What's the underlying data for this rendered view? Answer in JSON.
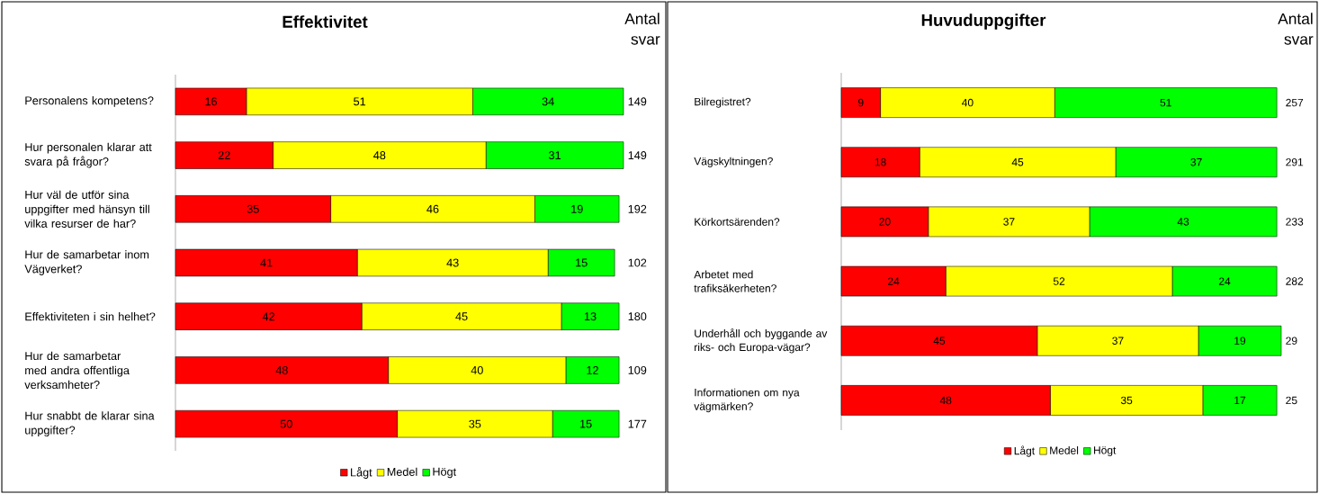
{
  "chart_data": [
    {
      "type": "bar",
      "orientation": "horizontal",
      "stacked": true,
      "title": "Effektivitet",
      "data_labels": true,
      "legend": "bottom",
      "tick_labels": "y",
      "categories": [
        "Personalens kompetens?",
        "Hur personalen klarar att svara på frågor?",
        "Hur väl de utför sina uppgifter med hänsyn till vilka resurser de har?",
        "Hur de samarbetar inom Vägverket?",
        "Effektiviteten i sin helhet?",
        "Hur de samarbetar med andra offentliga verksamheter?",
        "Hur snabbt de klarar sina uppgifter?"
      ],
      "series": [
        {
          "name": "Lågt",
          "color": "#ff0000",
          "values": [
            16,
            22,
            35,
            41,
            42,
            48,
            50
          ]
        },
        {
          "name": "Medel",
          "color": "#ffff00",
          "values": [
            51,
            48,
            46,
            43,
            45,
            40,
            35
          ]
        },
        {
          "name": "Högt",
          "color": "#00ff00",
          "values": [
            34,
            31,
            19,
            15,
            13,
            12,
            15
          ]
        }
      ],
      "annotations": [
        "Antal svar",
        "149",
        "149",
        "192",
        "102",
        "180",
        "109",
        "177"
      ]
    },
    {
      "type": "bar",
      "orientation": "horizontal",
      "stacked": true,
      "title": "Huvuduppgifter",
      "data_labels": true,
      "legend": "bottom",
      "tick_labels": "y",
      "categories": [
        "Bilregistret?",
        "Vägskyltningen?",
        "Körkortsärenden?",
        "Arbetet med trafiksäkerheten?",
        "Underhåll och byggande av riks- och Europa-vägar?",
        "Informationen om nya vägmärken?"
      ],
      "series": [
        {
          "name": "Lågt",
          "color": "#ff0000",
          "values": [
            9,
            18,
            20,
            24,
            45,
            48
          ]
        },
        {
          "name": "Medel",
          "color": "#ffff00",
          "values": [
            40,
            45,
            37,
            52,
            37,
            35
          ]
        },
        {
          "name": "Högt",
          "color": "#00ff00",
          "values": [
            51,
            37,
            43,
            24,
            19,
            17
          ]
        }
      ],
      "annotations": [
        "Antal svar",
        "257",
        "291",
        "233",
        "282",
        "29",
        "25"
      ]
    }
  ]
}
